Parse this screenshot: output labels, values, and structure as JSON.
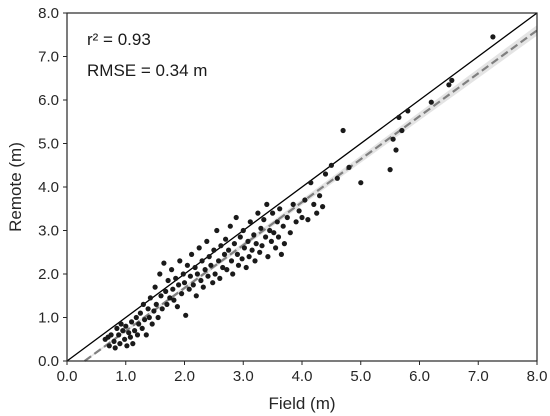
{
  "chart_data": {
    "type": "scatter",
    "title": "",
    "xlabel": "Field (m)",
    "ylabel": "Remote (m)",
    "xlim": [
      0,
      8
    ],
    "ylim": [
      0,
      8
    ],
    "xticks": [
      "0.0",
      "1.0",
      "2.0",
      "3.0",
      "4.0",
      "5.0",
      "6.0",
      "7.0",
      "8.0"
    ],
    "yticks": [
      "0.0",
      "1.0",
      "2.0",
      "3.0",
      "4.0",
      "5.0",
      "6.0",
      "7.0",
      "8.0"
    ],
    "grid": false,
    "annotations": {
      "r2": "r² = 0.93",
      "rmse": "RMSE = 0.34 m"
    },
    "one_to_one_line": {
      "x": [
        0,
        8
      ],
      "y": [
        0,
        8
      ],
      "color": "#000000",
      "style": "solid"
    },
    "regression_line": {
      "x": [
        0.3,
        8.0
      ],
      "y": [
        0.0,
        7.6
      ],
      "color": "#808080",
      "style": "dashed",
      "ci_color": "#d9d9d9"
    },
    "point_color": "#1a1a1a",
    "points": [
      {
        "x": 0.65,
        "y": 0.5
      },
      {
        "x": 0.7,
        "y": 0.55
      },
      {
        "x": 0.72,
        "y": 0.35
      },
      {
        "x": 0.75,
        "y": 0.6
      },
      {
        "x": 0.8,
        "y": 0.45
      },
      {
        "x": 0.82,
        "y": 0.3
      },
      {
        "x": 0.85,
        "y": 0.75
      },
      {
        "x": 0.88,
        "y": 0.6
      },
      {
        "x": 0.9,
        "y": 0.4
      },
      {
        "x": 0.92,
        "y": 0.85
      },
      {
        "x": 0.95,
        "y": 0.7
      },
      {
        "x": 0.98,
        "y": 0.5
      },
      {
        "x": 1.0,
        "y": 0.8
      },
      {
        "x": 1.02,
        "y": 0.35
      },
      {
        "x": 1.05,
        "y": 0.65
      },
      {
        "x": 1.08,
        "y": 0.55
      },
      {
        "x": 1.1,
        "y": 0.9
      },
      {
        "x": 1.12,
        "y": 0.4
      },
      {
        "x": 1.15,
        "y": 0.7
      },
      {
        "x": 1.18,
        "y": 1.0
      },
      {
        "x": 1.2,
        "y": 0.6
      },
      {
        "x": 1.22,
        "y": 0.85
      },
      {
        "x": 1.25,
        "y": 1.1
      },
      {
        "x": 1.28,
        "y": 0.75
      },
      {
        "x": 1.3,
        "y": 1.3
      },
      {
        "x": 1.32,
        "y": 0.95
      },
      {
        "x": 1.35,
        "y": 0.6
      },
      {
        "x": 1.38,
        "y": 1.2
      },
      {
        "x": 1.4,
        "y": 1.0
      },
      {
        "x": 1.42,
        "y": 1.45
      },
      {
        "x": 1.45,
        "y": 0.85
      },
      {
        "x": 1.48,
        "y": 1.15
      },
      {
        "x": 1.5,
        "y": 1.7
      },
      {
        "x": 1.52,
        "y": 1.3
      },
      {
        "x": 1.55,
        "y": 1.0
      },
      {
        "x": 1.58,
        "y": 2.0
      },
      {
        "x": 1.6,
        "y": 1.5
      },
      {
        "x": 1.62,
        "y": 1.2
      },
      {
        "x": 1.65,
        "y": 2.25
      },
      {
        "x": 1.68,
        "y": 1.6
      },
      {
        "x": 1.7,
        "y": 1.3
      },
      {
        "x": 1.72,
        "y": 1.85
      },
      {
        "x": 1.75,
        "y": 1.45
      },
      {
        "x": 1.78,
        "y": 2.1
      },
      {
        "x": 1.8,
        "y": 1.65
      },
      {
        "x": 1.82,
        "y": 1.4
      },
      {
        "x": 1.85,
        "y": 1.9
      },
      {
        "x": 1.88,
        "y": 1.25
      },
      {
        "x": 1.9,
        "y": 1.75
      },
      {
        "x": 1.92,
        "y": 2.3
      },
      {
        "x": 1.95,
        "y": 1.55
      },
      {
        "x": 1.98,
        "y": 2.0
      },
      {
        "x": 2.0,
        "y": 1.8
      },
      {
        "x": 2.02,
        "y": 1.05
      },
      {
        "x": 2.05,
        "y": 2.2
      },
      {
        "x": 2.08,
        "y": 1.65
      },
      {
        "x": 2.1,
        "y": 1.95
      },
      {
        "x": 2.12,
        "y": 2.45
      },
      {
        "x": 2.15,
        "y": 1.75
      },
      {
        "x": 2.18,
        "y": 2.15
      },
      {
        "x": 2.2,
        "y": 1.5
      },
      {
        "x": 2.22,
        "y": 2.0
      },
      {
        "x": 2.25,
        "y": 2.6
      },
      {
        "x": 2.28,
        "y": 1.85
      },
      {
        "x": 2.3,
        "y": 2.3
      },
      {
        "x": 2.32,
        "y": 1.7
      },
      {
        "x": 2.35,
        "y": 2.1
      },
      {
        "x": 2.38,
        "y": 2.75
      },
      {
        "x": 2.4,
        "y": 1.95
      },
      {
        "x": 2.42,
        "y": 2.4
      },
      {
        "x": 2.45,
        "y": 2.2
      },
      {
        "x": 2.48,
        "y": 1.8
      },
      {
        "x": 2.5,
        "y": 2.55
      },
      {
        "x": 2.52,
        "y": 2.0
      },
      {
        "x": 2.55,
        "y": 3.0
      },
      {
        "x": 2.58,
        "y": 2.3
      },
      {
        "x": 2.6,
        "y": 1.9
      },
      {
        "x": 2.62,
        "y": 2.65
      },
      {
        "x": 2.65,
        "y": 2.15
      },
      {
        "x": 2.68,
        "y": 2.45
      },
      {
        "x": 2.7,
        "y": 2.8
      },
      {
        "x": 2.72,
        "y": 2.1
      },
      {
        "x": 2.75,
        "y": 2.55
      },
      {
        "x": 2.78,
        "y": 3.1
      },
      {
        "x": 2.8,
        "y": 2.3
      },
      {
        "x": 2.82,
        "y": 2.0
      },
      {
        "x": 2.85,
        "y": 2.7
      },
      {
        "x": 2.88,
        "y": 3.3
      },
      {
        "x": 2.9,
        "y": 2.45
      },
      {
        "x": 2.92,
        "y": 2.2
      },
      {
        "x": 2.95,
        "y": 2.85
      },
      {
        "x": 2.98,
        "y": 2.35
      },
      {
        "x": 3.0,
        "y": 3.0
      },
      {
        "x": 3.02,
        "y": 2.6
      },
      {
        "x": 3.05,
        "y": 2.15
      },
      {
        "x": 3.08,
        "y": 2.75
      },
      {
        "x": 3.1,
        "y": 2.4
      },
      {
        "x": 3.12,
        "y": 3.2
      },
      {
        "x": 3.15,
        "y": 2.55
      },
      {
        "x": 3.18,
        "y": 2.9
      },
      {
        "x": 3.2,
        "y": 2.3
      },
      {
        "x": 3.22,
        "y": 2.7
      },
      {
        "x": 3.25,
        "y": 3.4
      },
      {
        "x": 3.28,
        "y": 2.5
      },
      {
        "x": 3.3,
        "y": 3.05
      },
      {
        "x": 3.32,
        "y": 2.65
      },
      {
        "x": 3.35,
        "y": 3.25
      },
      {
        "x": 3.38,
        "y": 2.85
      },
      {
        "x": 3.4,
        "y": 3.6
      },
      {
        "x": 3.42,
        "y": 2.4
      },
      {
        "x": 3.45,
        "y": 3.0
      },
      {
        "x": 3.48,
        "y": 2.75
      },
      {
        "x": 3.5,
        "y": 3.4
      },
      {
        "x": 3.52,
        "y": 2.95
      },
      {
        "x": 3.55,
        "y": 2.6
      },
      {
        "x": 3.58,
        "y": 3.2
      },
      {
        "x": 3.6,
        "y": 2.85
      },
      {
        "x": 3.62,
        "y": 3.5
      },
      {
        "x": 3.65,
        "y": 2.45
      },
      {
        "x": 3.68,
        "y": 3.1
      },
      {
        "x": 3.7,
        "y": 2.7
      },
      {
        "x": 3.75,
        "y": 3.3
      },
      {
        "x": 3.8,
        "y": 2.95
      },
      {
        "x": 3.85,
        "y": 3.6
      },
      {
        "x": 3.9,
        "y": 3.2
      },
      {
        "x": 3.95,
        "y": 3.45
      },
      {
        "x": 4.0,
        "y": 3.3
      },
      {
        "x": 4.05,
        "y": 3.7
      },
      {
        "x": 4.1,
        "y": 3.25
      },
      {
        "x": 4.15,
        "y": 4.1
      },
      {
        "x": 4.2,
        "y": 3.6
      },
      {
        "x": 4.25,
        "y": 3.4
      },
      {
        "x": 4.3,
        "y": 3.8
      },
      {
        "x": 4.35,
        "y": 3.55
      },
      {
        "x": 4.4,
        "y": 4.3
      },
      {
        "x": 4.5,
        "y": 4.5
      },
      {
        "x": 4.6,
        "y": 4.2
      },
      {
        "x": 4.7,
        "y": 5.3
      },
      {
        "x": 4.8,
        "y": 4.45
      },
      {
        "x": 5.0,
        "y": 4.1
      },
      {
        "x": 5.5,
        "y": 4.4
      },
      {
        "x": 5.55,
        "y": 5.1
      },
      {
        "x": 5.6,
        "y": 4.85
      },
      {
        "x": 5.65,
        "y": 5.6
      },
      {
        "x": 5.7,
        "y": 5.3
      },
      {
        "x": 5.8,
        "y": 5.75
      },
      {
        "x": 6.2,
        "y": 5.95
      },
      {
        "x": 6.5,
        "y": 6.35
      },
      {
        "x": 6.55,
        "y": 6.45
      },
      {
        "x": 7.25,
        "y": 7.45
      }
    ]
  }
}
